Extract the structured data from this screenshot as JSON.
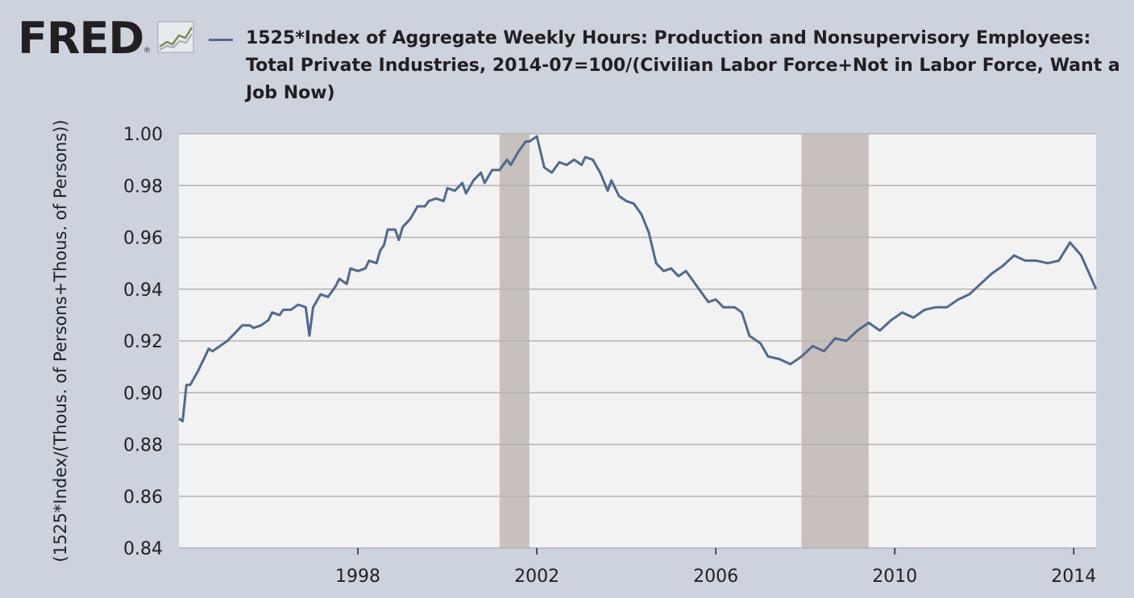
{
  "header": {
    "logo_text": "FRED",
    "logo_reg": "®",
    "logo_icon": "line-chart-icon",
    "legend_label": "1525*Index of Aggregate Weekly Hours: Production and Nonsupervisory Employees: Total Private Industries, 2014-07=100/(Civilian Labor Force+Not in Labor Force, Want a Job Now)"
  },
  "colors": {
    "page_bg": "#cdd3dc",
    "plot_bg": "#f2f2f2",
    "series": "#4c6a92",
    "recession": "#c8c0bc",
    "gridline": "#b3b3b3"
  },
  "chart_data": {
    "type": "line",
    "title": "1525*Index of Aggregate Weekly Hours: Production and Nonsupervisory Employees: Total Private Industries, 2014-07=100/(Civilian Labor Force+Not in Labor Force, Want a Job Now)",
    "xlabel": "",
    "ylabel": "(1525*Index/(Thous. of Persons+Thous. of Persons))",
    "xlim": [
      "1994-01",
      "2014-07"
    ],
    "ylim": [
      0.84,
      1.0
    ],
    "yticks": [
      0.84,
      0.86,
      0.88,
      0.9,
      0.92,
      0.94,
      0.96,
      0.98,
      1.0
    ],
    "ytick_labels": [
      "0.84",
      "0.86",
      "0.88",
      "0.90",
      "0.92",
      "0.94",
      "0.96",
      "0.98",
      "1.00"
    ],
    "xticks": [
      "1998-01",
      "2002-01",
      "2006-01",
      "2010-01",
      "2014-01"
    ],
    "xtick_labels": [
      "1998",
      "2002",
      "2006",
      "2010",
      "2014"
    ],
    "grid": true,
    "legend_position": "top",
    "recessions": [
      {
        "start": "2001-03",
        "end": "2001-11"
      },
      {
        "start": "2007-12",
        "end": "2009-06"
      }
    ],
    "series": [
      {
        "name": "1525*Index of Aggregate Weekly Hours: Production and Nonsupervisory Employees: Total Private Industries, 2014-07=100/(Civilian Labor Force+Not in Labor Force, Want a Job Now)",
        "points": [
          [
            "1994-01",
            0.89
          ],
          [
            "1994-02",
            0.889
          ],
          [
            "1994-03",
            0.903
          ],
          [
            "1994-04",
            0.903
          ],
          [
            "1994-06",
            0.908
          ],
          [
            "1994-08",
            0.914
          ],
          [
            "1994-09",
            0.917
          ],
          [
            "1994-10",
            0.916
          ],
          [
            "1994-12",
            0.918
          ],
          [
            "1995-02",
            0.92
          ],
          [
            "1995-04",
            0.923
          ],
          [
            "1995-06",
            0.926
          ],
          [
            "1995-08",
            0.926
          ],
          [
            "1995-09",
            0.925
          ],
          [
            "1995-11",
            0.926
          ],
          [
            "1996-01",
            0.928
          ],
          [
            "1996-02",
            0.931
          ],
          [
            "1996-04",
            0.93
          ],
          [
            "1996-05",
            0.932
          ],
          [
            "1996-07",
            0.932
          ],
          [
            "1996-09",
            0.934
          ],
          [
            "1996-11",
            0.933
          ],
          [
            "1996-12",
            0.922
          ],
          [
            "1997-01",
            0.933
          ],
          [
            "1997-03",
            0.938
          ],
          [
            "1997-05",
            0.937
          ],
          [
            "1997-07",
            0.941
          ],
          [
            "1997-08",
            0.944
          ],
          [
            "1997-10",
            0.942
          ],
          [
            "1997-11",
            0.948
          ],
          [
            "1998-01",
            0.947
          ],
          [
            "1998-03",
            0.948
          ],
          [
            "1998-04",
            0.951
          ],
          [
            "1998-06",
            0.95
          ],
          [
            "1998-07",
            0.955
          ],
          [
            "1998-08",
            0.957
          ],
          [
            "1998-09",
            0.963
          ],
          [
            "1998-11",
            0.963
          ],
          [
            "1998-12",
            0.959
          ],
          [
            "1999-01",
            0.964
          ],
          [
            "1999-03",
            0.967
          ],
          [
            "1999-05",
            0.972
          ],
          [
            "1999-07",
            0.972
          ],
          [
            "1999-08",
            0.974
          ],
          [
            "1999-10",
            0.975
          ],
          [
            "1999-12",
            0.974
          ],
          [
            "2000-01",
            0.979
          ],
          [
            "2000-03",
            0.978
          ],
          [
            "2000-05",
            0.981
          ],
          [
            "2000-06",
            0.977
          ],
          [
            "2000-08",
            0.982
          ],
          [
            "2000-10",
            0.985
          ],
          [
            "2000-11",
            0.981
          ],
          [
            "2001-01",
            0.986
          ],
          [
            "2001-03",
            0.986
          ],
          [
            "2001-05",
            0.99
          ],
          [
            "2001-06",
            0.988
          ],
          [
            "2001-08",
            0.993
          ],
          [
            "2001-10",
            0.997
          ],
          [
            "2001-11",
            0.997
          ],
          [
            "2002-01",
            0.999
          ],
          [
            "2002-03",
            0.987
          ],
          [
            "2002-05",
            0.985
          ],
          [
            "2002-07",
            0.989
          ],
          [
            "2002-09",
            0.988
          ],
          [
            "2002-11",
            0.99
          ],
          [
            "2003-01",
            0.988
          ],
          [
            "2003-02",
            0.991
          ],
          [
            "2003-04",
            0.99
          ],
          [
            "2003-06",
            0.985
          ],
          [
            "2003-08",
            0.978
          ],
          [
            "2003-09",
            0.982
          ],
          [
            "2003-11",
            0.976
          ],
          [
            "2004-01",
            0.974
          ],
          [
            "2004-03",
            0.973
          ],
          [
            "2004-05",
            0.969
          ],
          [
            "2004-07",
            0.962
          ],
          [
            "2004-09",
            0.95
          ],
          [
            "2004-11",
            0.947
          ],
          [
            "2005-01",
            0.948
          ],
          [
            "2005-03",
            0.945
          ],
          [
            "2005-05",
            0.947
          ],
          [
            "2005-07",
            0.943
          ],
          [
            "2005-09",
            0.939
          ],
          [
            "2005-11",
            0.935
          ],
          [
            "2006-01",
            0.936
          ],
          [
            "2006-03",
            0.933
          ],
          [
            "2006-06",
            0.933
          ],
          [
            "2006-08",
            0.931
          ],
          [
            "2006-10",
            0.922
          ],
          [
            "2007-01",
            0.919
          ],
          [
            "2007-03",
            0.914
          ],
          [
            "2007-06",
            0.913
          ],
          [
            "2007-09",
            0.911
          ],
          [
            "2007-12",
            0.914
          ],
          [
            "2008-03",
            0.918
          ],
          [
            "2008-06",
            0.916
          ],
          [
            "2008-09",
            0.921
          ],
          [
            "2008-12",
            0.92
          ],
          [
            "2009-03",
            0.924
          ],
          [
            "2009-06",
            0.927
          ],
          [
            "2009-09",
            0.924
          ],
          [
            "2009-12",
            0.928
          ],
          [
            "2010-03",
            0.931
          ],
          [
            "2010-06",
            0.929
          ],
          [
            "2010-09",
            0.932
          ],
          [
            "2010-12",
            0.933
          ],
          [
            "2011-03",
            0.933
          ],
          [
            "2011-06",
            0.936
          ],
          [
            "2011-09",
            0.938
          ],
          [
            "2011-12",
            0.942
          ],
          [
            "2012-03",
            0.946
          ],
          [
            "2012-06",
            0.949
          ],
          [
            "2012-09",
            0.953
          ],
          [
            "2012-12",
            0.951
          ],
          [
            "2013-03",
            0.951
          ],
          [
            "2013-06",
            0.95
          ],
          [
            "2013-09",
            0.951
          ],
          [
            "2013-12",
            0.958
          ],
          [
            "2014-03",
            0.953
          ],
          [
            "2014-07",
            0.94
          ]
        ]
      }
    ]
  }
}
